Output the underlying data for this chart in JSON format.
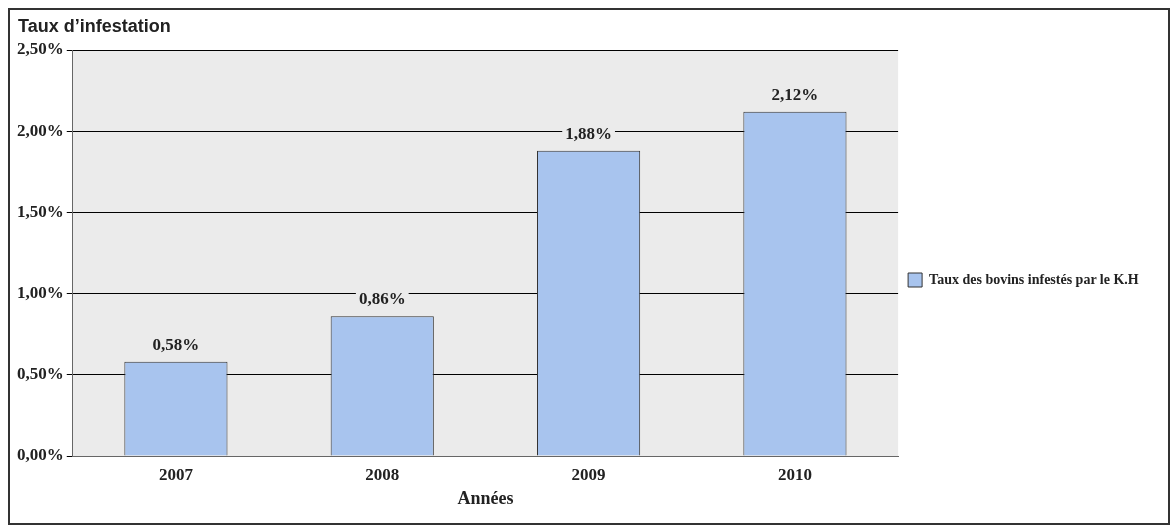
{
  "chart_data": {
    "type": "bar",
    "xlabel": "Années",
    "ylabel": "Taux d’infestation",
    "categories": [
      "2007",
      "2008",
      "2009",
      "2010"
    ],
    "series": [
      {
        "name": "Taux des bovins infestés par le K.H",
        "color": "#a8c4ee",
        "values": [
          0.58,
          0.86,
          1.88,
          2.12
        ],
        "value_labels": [
          "0,58%",
          "0,86%",
          "1,88%",
          "2,12%"
        ]
      }
    ],
    "ylim": [
      0,
      2.5
    ],
    "yticks": [
      {
        "value": 0,
        "label": "0,00%"
      },
      {
        "value": 0.5,
        "label": "0,50%"
      },
      {
        "value": 1,
        "label": "1,00%"
      },
      {
        "value": 1.5,
        "label": "1,50%"
      },
      {
        "value": 2,
        "label": "2,00%"
      },
      {
        "value": 2.5,
        "label": "2,50%"
      }
    ],
    "grid": "y",
    "legend": "right"
  }
}
